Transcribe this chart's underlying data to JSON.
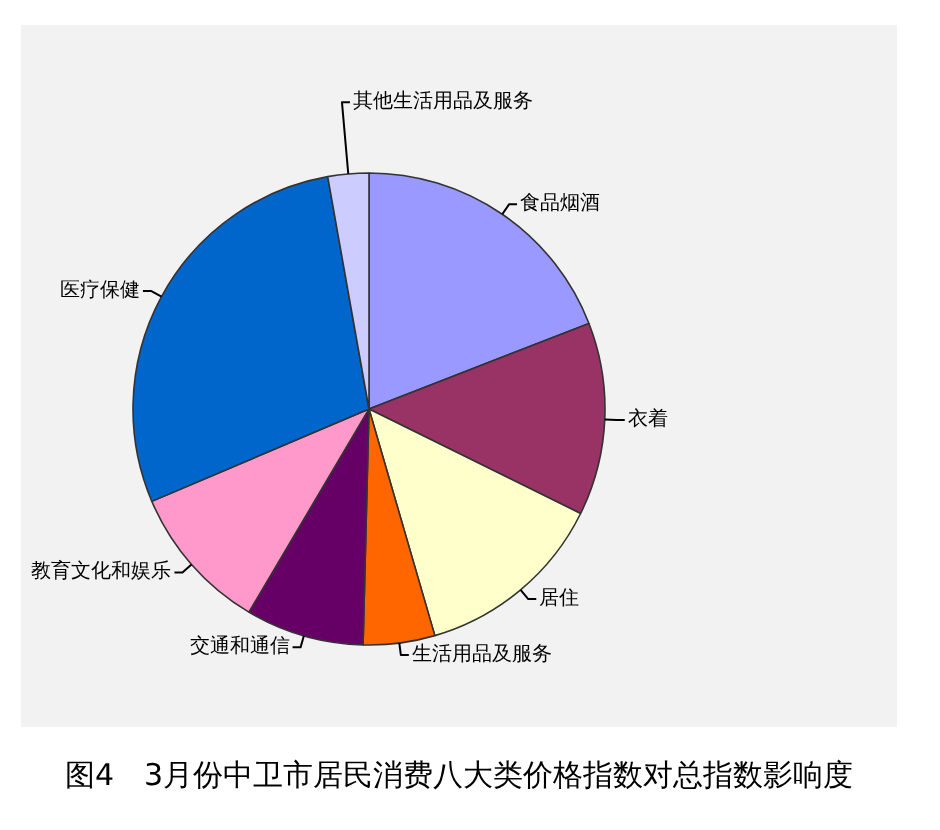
{
  "chart_data": {
    "type": "pie",
    "title": "图4　3月份中卫市居民消费八大类价格指数对总指数影响度",
    "categories": [
      "食品烟酒",
      "衣着",
      "居住",
      "生活用品及服务",
      "交通和通信",
      "教育文化和娱乐",
      "医疗保健",
      "其他生活用品及服务"
    ],
    "values": [
      19.1,
      13.2,
      13.2,
      4.9,
      8.1,
      10.1,
      28.6,
      2.8
    ],
    "colors": [
      "#9999ff",
      "#993366",
      "#ffffcc",
      "#ff6600",
      "#660066",
      "#ff99cc",
      "#0066cc",
      "#ccccff"
    ]
  }
}
